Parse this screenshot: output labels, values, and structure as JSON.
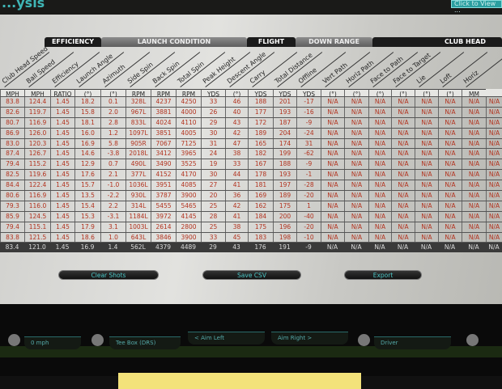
{
  "header": {
    "title": "...ysis",
    "view_button": "Click to View ..."
  },
  "categories": [
    {
      "label": "EFFICIENCY",
      "style": "dark"
    },
    {
      "label": "LAUNCH CONDITION",
      "style": "gray"
    },
    {
      "label": "FLIGHT",
      "style": "dark"
    },
    {
      "label": "DOWN RANGE",
      "style": "gray"
    },
    {
      "label": "CLUB HEAD",
      "style": "dark"
    }
  ],
  "columns": [
    {
      "label": "Club Head Speed",
      "unit": "MPH"
    },
    {
      "label": "Ball Speed",
      "unit": "MPH"
    },
    {
      "label": "Efficiency",
      "unit": "RATIO"
    },
    {
      "label": "Launch Angle",
      "unit": "(°)"
    },
    {
      "label": "Azimuth",
      "unit": "(°)"
    },
    {
      "label": "Side Spin",
      "unit": "RPM"
    },
    {
      "label": "Back Spin",
      "unit": "RPM"
    },
    {
      "label": "Total Spin",
      "unit": "RPM"
    },
    {
      "label": "Peak Height",
      "unit": "YDS"
    },
    {
      "label": "Descent Angle",
      "unit": "(°)"
    },
    {
      "label": "Carry",
      "unit": "YDS"
    },
    {
      "label": "Total Distance",
      "unit": "YDS"
    },
    {
      "label": "Offline",
      "unit": "YDS"
    },
    {
      "label": "Vert Path",
      "unit": "(°)"
    },
    {
      "label": "Horiz Path",
      "unit": "(°)"
    },
    {
      "label": "Face to Path",
      "unit": "(°)"
    },
    {
      "label": "Face to Target",
      "unit": "(°)"
    },
    {
      "label": "Lie",
      "unit": "(°)"
    },
    {
      "label": "Loft",
      "unit": "(°)"
    },
    {
      "label": "Horiz",
      "unit": "MM"
    }
  ],
  "rows": [
    [
      "83.8",
      "124.4",
      "1.45",
      "18.2",
      "0.1",
      "328L",
      "4237",
      "4250",
      "33",
      "46",
      "188",
      "201",
      "-17"
    ],
    [
      "82.6",
      "119.7",
      "1.45",
      "15.8",
      "2.0",
      "967L",
      "3881",
      "4000",
      "26",
      "40",
      "177",
      "193",
      "-16"
    ],
    [
      "80.7",
      "116.9",
      "1.45",
      "18.1",
      "2.8",
      "833L",
      "4024",
      "4110",
      "29",
      "43",
      "172",
      "187",
      "-9"
    ],
    [
      "86.9",
      "126.0",
      "1.45",
      "16.0",
      "1.2",
      "1097L",
      "3851",
      "4005",
      "30",
      "42",
      "189",
      "204",
      "-24"
    ],
    [
      "83.0",
      "120.3",
      "1.45",
      "16.9",
      "5.8",
      "905R",
      "7067",
      "7125",
      "31",
      "47",
      "165",
      "174",
      "31"
    ],
    [
      "87.4",
      "126.7",
      "1.45",
      "14.6",
      "-3.8",
      "2018L",
      "3412",
      "3965",
      "24",
      "38",
      "182",
      "199",
      "-62"
    ],
    [
      "79.4",
      "115.2",
      "1.45",
      "12.9",
      "0.7",
      "490L",
      "3490",
      "3525",
      "19",
      "33",
      "167",
      "188",
      "-9"
    ],
    [
      "82.5",
      "119.6",
      "1.45",
      "17.6",
      "2.1",
      "377L",
      "4152",
      "4170",
      "30",
      "44",
      "178",
      "193",
      "-1"
    ],
    [
      "84.4",
      "122.4",
      "1.45",
      "15.7",
      "-1.0",
      "1036L",
      "3951",
      "4085",
      "27",
      "41",
      "181",
      "197",
      "-28"
    ],
    [
      "80.6",
      "116.9",
      "1.45",
      "13.5",
      "-2.2",
      "930L",
      "3787",
      "3900",
      "20",
      "36",
      "169",
      "189",
      "-20"
    ],
    [
      "79.3",
      "116.0",
      "1.45",
      "15.4",
      "2.2",
      "314L",
      "5455",
      "5465",
      "25",
      "42",
      "162",
      "175",
      "1"
    ],
    [
      "85.9",
      "124.5",
      "1.45",
      "15.3",
      "-3.1",
      "1184L",
      "3972",
      "4145",
      "28",
      "41",
      "184",
      "200",
      "-40"
    ],
    [
      "79.4",
      "115.1",
      "1.45",
      "17.9",
      "3.1",
      "1003L",
      "2614",
      "2800",
      "25",
      "38",
      "175",
      "196",
      "-20"
    ],
    [
      "83.8",
      "121.5",
      "1.45",
      "18.6",
      "1.0",
      "643L",
      "3846",
      "3900",
      "33",
      "45",
      "183",
      "198",
      "-10"
    ]
  ],
  "na_value": "N/A",
  "average": [
    "83.4",
    "121.0",
    "1.45",
    "16.9",
    "1.4",
    "562L",
    "4379",
    "4489",
    "29",
    "43",
    "176",
    "191",
    "-9"
  ],
  "buttons": {
    "clear": "Clear Shots",
    "save": "Save CSV",
    "export": "Export"
  },
  "toolbar": [
    "0 mph",
    "Tee Box (DRS)",
    "< Aim Left",
    "Aim Right >",
    "Driver"
  ]
}
